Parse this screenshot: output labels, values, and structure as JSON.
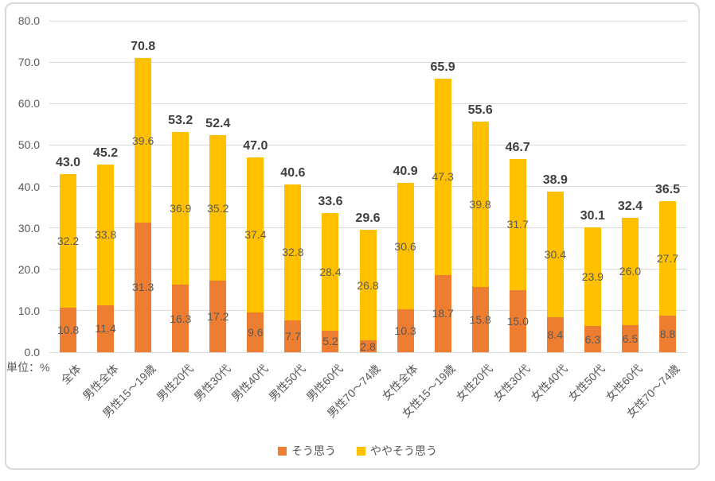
{
  "chart_data": {
    "type": "bar",
    "stacked": true,
    "title": "",
    "unit_label": "単位：%",
    "categories": [
      "全体",
      "男性全体",
      "男性15〜19歳",
      "男性20代",
      "男性30代",
      "男性40代",
      "男性50代",
      "男性60代",
      "男性70〜74歳",
      "女性全体",
      "女性15〜19歳",
      "女性20代",
      "女性30代",
      "女性40代",
      "女性50代",
      "女性60代",
      "女性70〜74歳"
    ],
    "series": [
      {
        "name": "そう思う",
        "color": "#ED7D31",
        "values": [
          10.8,
          11.4,
          31.3,
          16.3,
          17.2,
          9.6,
          7.7,
          5.2,
          2.8,
          10.3,
          18.7,
          15.8,
          15.0,
          8.4,
          6.3,
          6.5,
          8.8
        ]
      },
      {
        "name": "ややそう思う",
        "color": "#FFC000",
        "values": [
          32.2,
          33.8,
          39.6,
          36.9,
          35.2,
          37.4,
          32.8,
          28.4,
          26.8,
          30.6,
          47.3,
          39.8,
          31.7,
          30.4,
          23.9,
          26.0,
          27.7
        ]
      }
    ],
    "total_labels": [
      "43.0",
      "45.2",
      "70.8",
      "53.2",
      "52.4",
      "47.0",
      "40.6",
      "33.6",
      "29.6",
      "40.9",
      "65.9",
      "55.6",
      "46.7",
      "38.9",
      "30.1",
      "32.4",
      "36.5"
    ],
    "xlabel": "",
    "ylabel": "",
    "ylim": [
      0,
      80
    ],
    "ytick_step": 10,
    "ytick_labels": [
      "0.0",
      "10.0",
      "20.0",
      "30.0",
      "40.0",
      "50.0",
      "60.0",
      "70.0",
      "80.0"
    ],
    "grid": true,
    "legend_position": "bottom"
  },
  "colors": {
    "gridline": "#D9D9D9",
    "frame_border": "#D9D9D9",
    "axis_text": "#595959",
    "segment_label_text": "#595959",
    "total_label_text": "#3F3F3F",
    "background": "#FFFFFF"
  }
}
